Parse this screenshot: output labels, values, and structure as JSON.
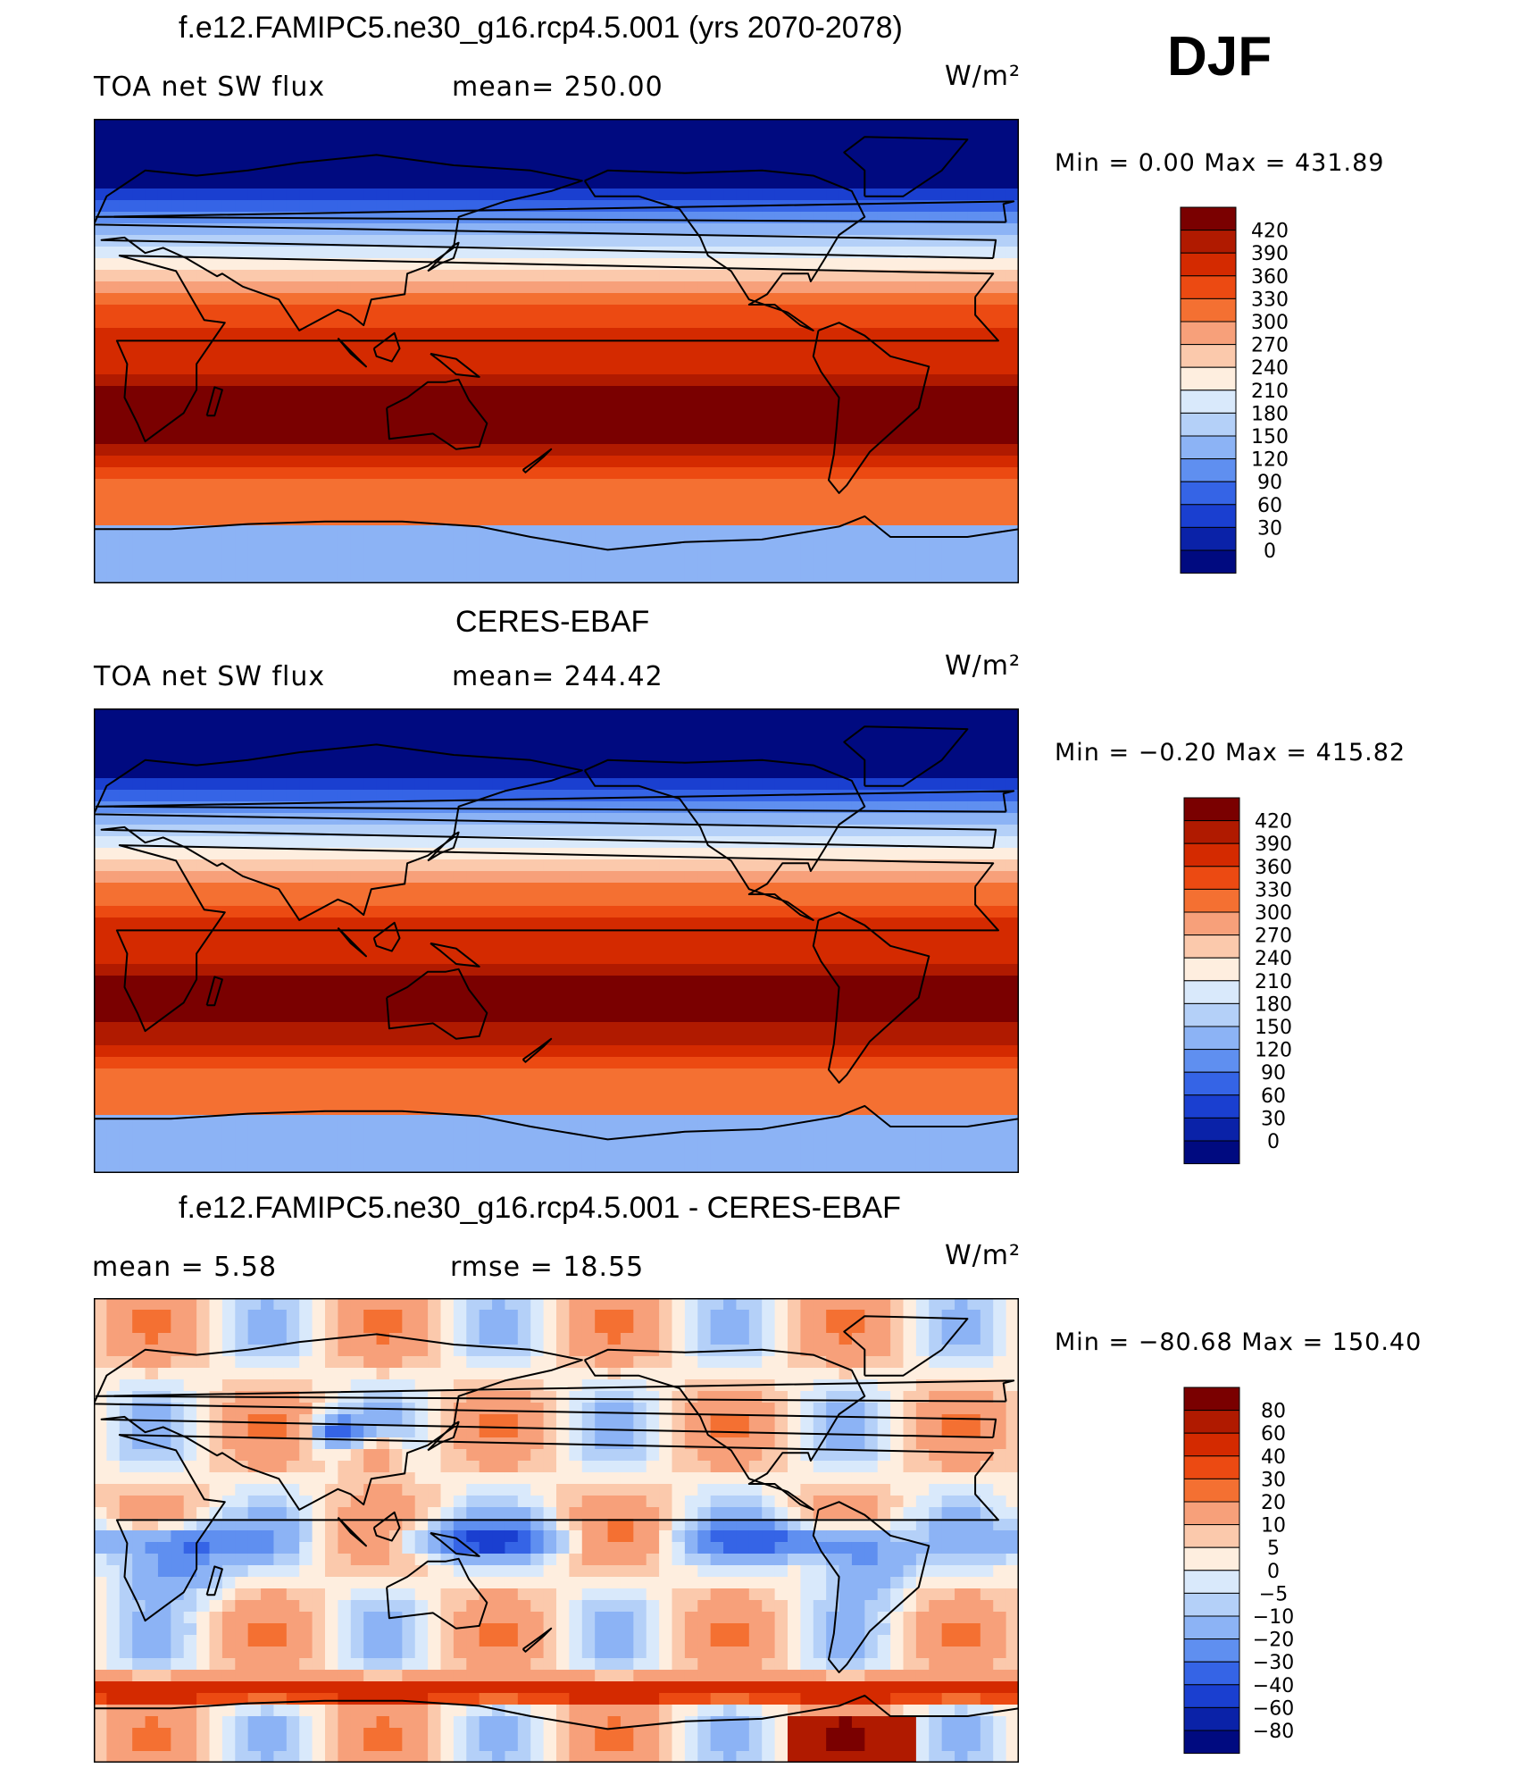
{
  "header": {
    "season": "DJF"
  },
  "chart_data": [
    {
      "type": "heatmap",
      "title": "f.e12.FAMIPC5.ne30_g16.rcp4.5.001 (yrs 2070-2078)",
      "left_label": "TOA net SW flux",
      "center_label": "mean= 250.00",
      "units": "W/m²",
      "min_max": "Min =    0.00  Max  =  431.89",
      "mean": 250.0,
      "min": 0.0,
      "max": 431.89,
      "palette": "blue-white-red",
      "levels": [
        "420",
        "390",
        "360",
        "330",
        "300",
        "270",
        "240",
        "210",
        "180",
        "150",
        "120",
        "90",
        "60",
        "30",
        "0"
      ],
      "colors": [
        "#7a0000",
        "#b01a00",
        "#d42a00",
        "#ec4a12",
        "#f47032",
        "#f7a07a",
        "#fbc9ac",
        "#feeedf",
        "#d9e9fb",
        "#b4d0f8",
        "#8cb3f5",
        "#5f8ff0",
        "#3564e6",
        "#1a3fd0",
        "#0a22a8",
        "#000a80"
      ]
    },
    {
      "type": "heatmap",
      "title": "CERES-EBAF",
      "left_label": "TOA net SW flux",
      "center_label": "mean= 244.42",
      "units": "W/m²",
      "min_max": "Min  =   −0.20  Max  =  415.82",
      "mean": 244.42,
      "min": -0.2,
      "max": 415.82,
      "palette": "blue-white-red",
      "levels": [
        "420",
        "390",
        "360",
        "330",
        "300",
        "270",
        "240",
        "210",
        "180",
        "150",
        "120",
        "90",
        "60",
        "30",
        "0"
      ],
      "colors": [
        "#7a0000",
        "#b01a00",
        "#d42a00",
        "#ec4a12",
        "#f47032",
        "#f7a07a",
        "#fbc9ac",
        "#feeedf",
        "#d9e9fb",
        "#b4d0f8",
        "#8cb3f5",
        "#5f8ff0",
        "#3564e6",
        "#1a3fd0",
        "#0a22a8",
        "#000a80"
      ]
    },
    {
      "type": "heatmap",
      "title": "f.e12.FAMIPC5.ne30_g16.rcp4.5.001 - CERES-EBAF",
      "left_label": "mean  =      5.58",
      "center_label": "rmse  =     18.55",
      "units": "W/m²",
      "min_max": "Min  =  −80.68  Max  =  150.40",
      "mean": 5.58,
      "rmse": 18.55,
      "min": -80.68,
      "max": 150.4,
      "palette": "diverging",
      "levels": [
        "80",
        "60",
        "40",
        "30",
        "20",
        "10",
        "5",
        "0",
        "−5",
        "−10",
        "−20",
        "−30",
        "−40",
        "−60",
        "−80"
      ],
      "colors": [
        "#7a0000",
        "#b01a00",
        "#d42a00",
        "#ec4a12",
        "#f47032",
        "#f7a07a",
        "#fbc9ac",
        "#feeedf",
        "#d9e9fb",
        "#b4d0f8",
        "#8cb3f5",
        "#5f8ff0",
        "#3564e6",
        "#1a3fd0",
        "#0a22a8",
        "#000a80"
      ]
    }
  ]
}
